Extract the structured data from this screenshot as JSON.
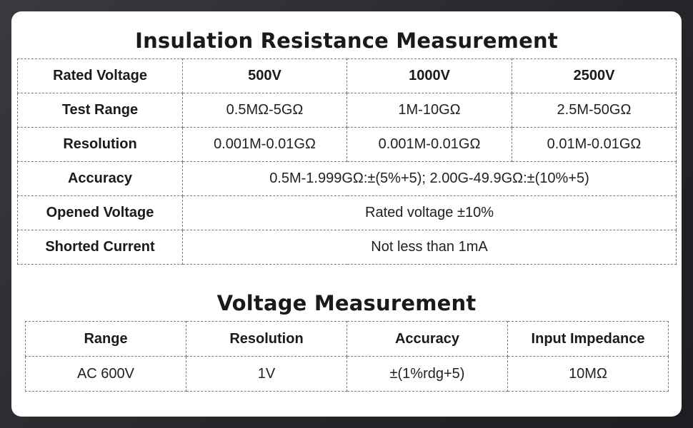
{
  "insulation": {
    "title": "Insulation Resistance Measurement",
    "rows": {
      "rated_voltage": {
        "label": "Rated Voltage",
        "c1": "500V",
        "c2": "1000V",
        "c3": "2500V"
      },
      "test_range": {
        "label": "Test Range",
        "c1": "0.5MΩ-5GΩ",
        "c2": "1M-10GΩ",
        "c3": "2.5M-50GΩ"
      },
      "resolution": {
        "label": "Resolution",
        "c1": "0.001M-0.01GΩ",
        "c2": "0.001M-0.01GΩ",
        "c3": "0.01M-0.01GΩ"
      },
      "accuracy": {
        "label": "Accuracy",
        "value": "0.5M-1.999GΩ:±(5%+5); 2.00G-49.9GΩ:±(10%+5)"
      },
      "opened_voltage": {
        "label": "Opened Voltage",
        "value": "Rated voltage ±10%"
      },
      "shorted_current": {
        "label": "Shorted Current",
        "value": "Not less than 1mA"
      }
    }
  },
  "voltage": {
    "title": "Voltage Measurement",
    "headers": {
      "h1": "Range",
      "h2": "Resolution",
      "h3": "Accuracy",
      "h4": "Input Impedance"
    },
    "row": {
      "c1": "AC 600V",
      "c2": "1V",
      "c3": "±(1%rdg+5)",
      "c4": "10MΩ"
    }
  }
}
